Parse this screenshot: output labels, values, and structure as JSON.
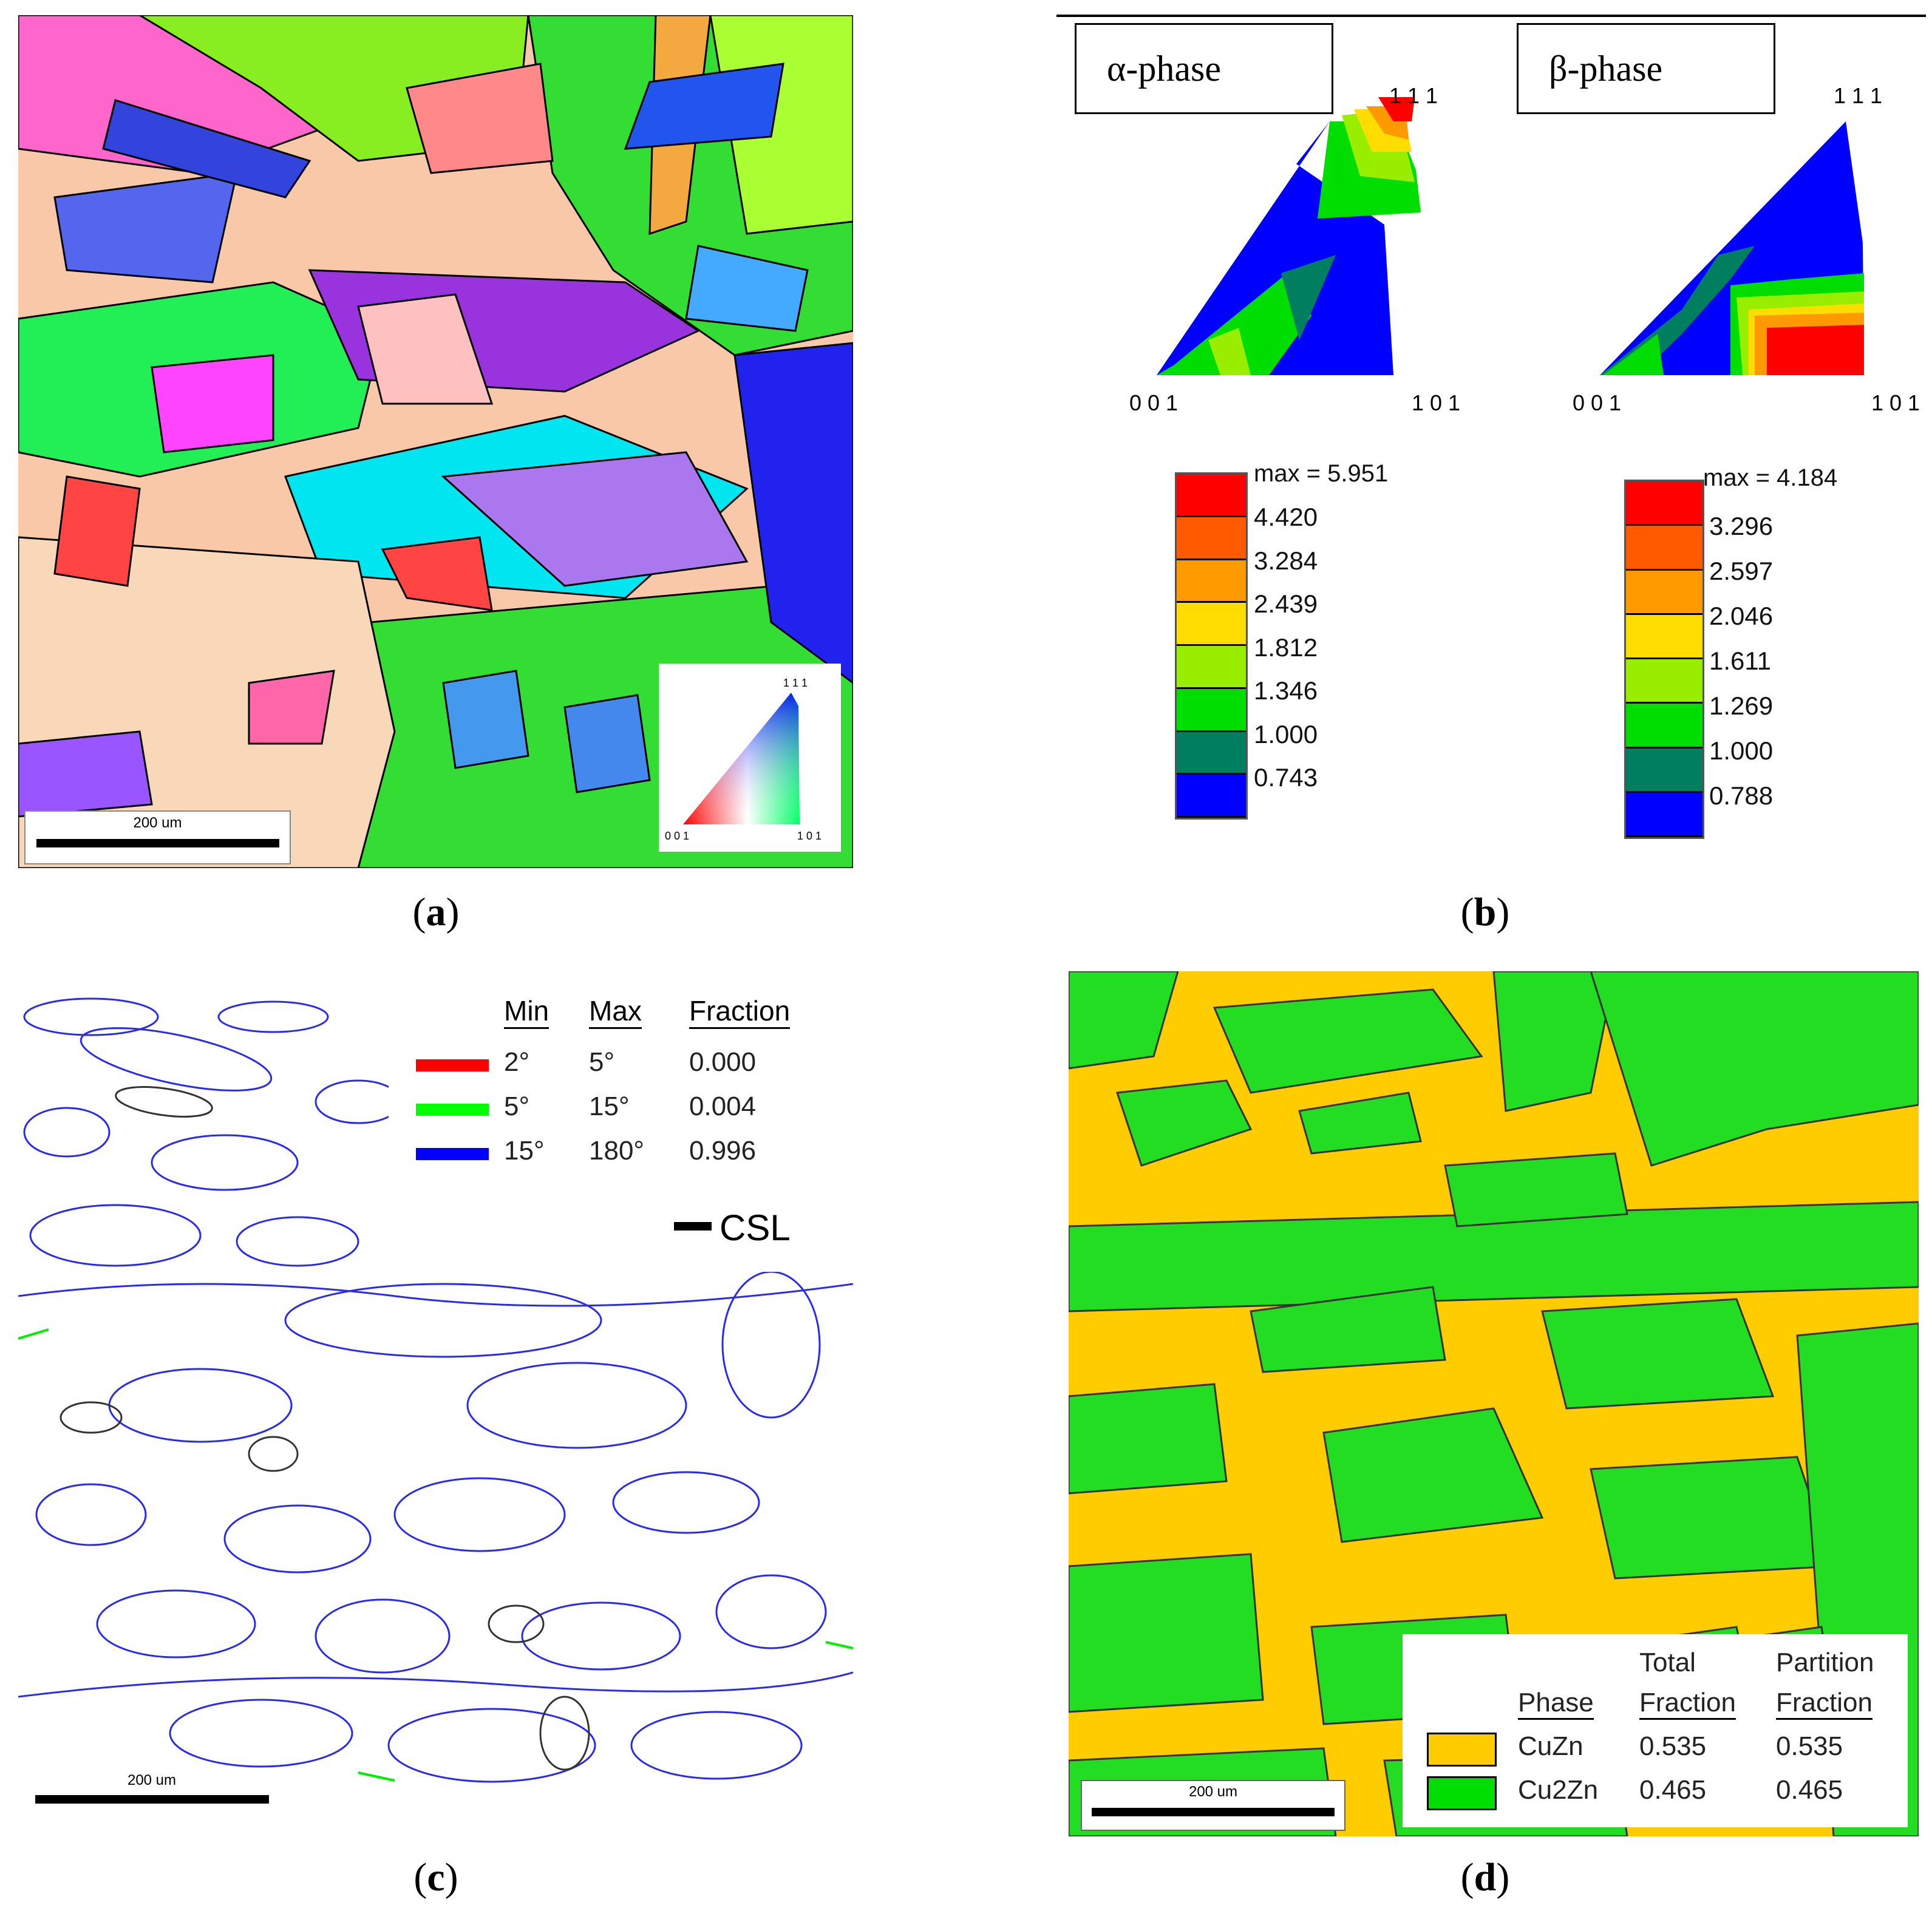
{
  "captions": {
    "a": "a",
    "b": "b",
    "c": "c",
    "d": "d"
  },
  "panel_a": {
    "scale_label": "200 um",
    "key": {
      "top": "1 1 1",
      "left": "0 0 1",
      "right": "1 0 1"
    }
  },
  "panel_b": {
    "alpha": {
      "title": "α-phase",
      "corners": {
        "top": "1 1 1",
        "left": "0 0 1",
        "right": "1 0 1"
      },
      "legend_max": "max = 5.951",
      "legend_levels": [
        "4.420",
        "3.284",
        "2.439",
        "1.812",
        "1.346",
        "1.000",
        "0.743"
      ],
      "legend_colors": [
        "#ff0000",
        "#ff5a00",
        "#ff9900",
        "#ffdd00",
        "#99ee00",
        "#00dd00",
        "#007f60",
        "#0000ff"
      ]
    },
    "beta": {
      "title": "β-phase",
      "corners": {
        "top": "1 1 1",
        "left": "0 0 1",
        "right": "1 0 1"
      },
      "legend_max": "max = 4.184",
      "legend_levels": [
        "3.296",
        "2.597",
        "2.046",
        "1.611",
        "1.269",
        "1.000",
        "0.788"
      ],
      "legend_colors": [
        "#ff0000",
        "#ff5a00",
        "#ff9900",
        "#ffdd00",
        "#99ee00",
        "#00dd00",
        "#007f60",
        "#0000ff"
      ]
    }
  },
  "panel_c": {
    "scale_label": "200 um",
    "table": {
      "headers": [
        "Min",
        "Max",
        "Fraction"
      ],
      "rows": [
        {
          "color": "#ff0000",
          "min": "2°",
          "max": "5°",
          "fraction": "0.000"
        },
        {
          "color": "#00ff00",
          "min": "5°",
          "max": "15°",
          "fraction": "0.004"
        },
        {
          "color": "#0000ff",
          "min": "15°",
          "max": "180°",
          "fraction": "0.996"
        }
      ],
      "csl_label": "CSL"
    }
  },
  "panel_d": {
    "scale_label": "200 um",
    "table": {
      "header_top": [
        "Total",
        "Partition"
      ],
      "headers": [
        "Phase",
        "Fraction",
        "Fraction"
      ],
      "rows": [
        {
          "color": "#ffcc00",
          "phase": "CuZn",
          "total": "0.535",
          "partition": "0.535"
        },
        {
          "color": "#00dd00",
          "phase": "Cu2Zn",
          "total": "0.465",
          "partition": "0.465"
        }
      ]
    }
  }
}
